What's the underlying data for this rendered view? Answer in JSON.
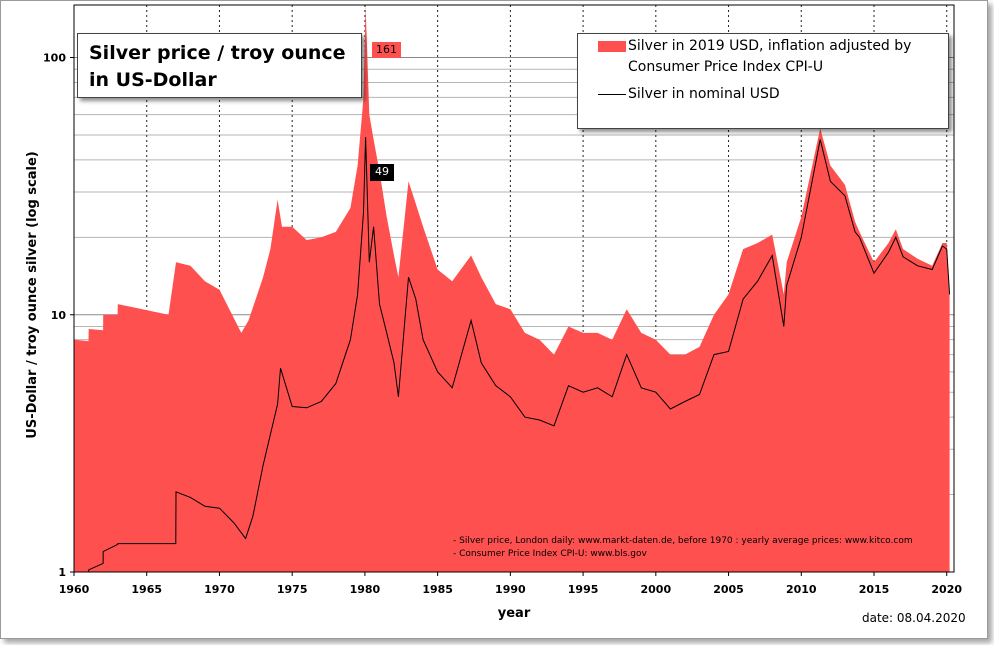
{
  "chart_data": {
    "type": "area",
    "title": "Silver price / troy ounce\nin US-Dollar",
    "xlabel": "year",
    "ylabel": "US-Dollar / troy ounce silver (log scale)",
    "yscale": "log",
    "xlim": [
      1960,
      2020.5
    ],
    "ylim": [
      1,
      160
    ],
    "x_ticks": [
      "1960",
      "1965",
      "1970",
      "1975",
      "1980",
      "1985",
      "1990",
      "1995",
      "2000",
      "2005",
      "2010",
      "2015",
      "2020"
    ],
    "y_tick_labels": [
      "1",
      "10",
      "100"
    ],
    "grid": "horizontal log gridlines, dashed vertical lines every 5 years",
    "legend_position": "top-right",
    "series": [
      {
        "name": "Silver in 2019 USD, inflation adjusted by Consumer Price Index CPI-U",
        "style": "filled area",
        "color": "#ff5050",
        "points": [
          [
            1960,
            8.0
          ],
          [
            1961,
            7.9
          ],
          [
            1961.01,
            8.8
          ],
          [
            1962,
            8.7
          ],
          [
            1962.01,
            10.0
          ],
          [
            1963,
            10.0
          ],
          [
            1963.01,
            11.0
          ],
          [
            1966.5,
            10.0
          ],
          [
            1967.01,
            16.0
          ],
          [
            1968,
            15.5
          ],
          [
            1969,
            13.5
          ],
          [
            1970,
            12.5
          ],
          [
            1971.5,
            8.5
          ],
          [
            1972,
            9.5
          ],
          [
            1973,
            14.0
          ],
          [
            1973.5,
            18.0
          ],
          [
            1974.0,
            28.0
          ],
          [
            1974.3,
            22.0
          ],
          [
            1975,
            22.0
          ],
          [
            1976,
            19.5
          ],
          [
            1977,
            20.0
          ],
          [
            1978,
            21.0
          ],
          [
            1979,
            26.0
          ],
          [
            1979.5,
            38.0
          ],
          [
            1979.9,
            70.0
          ],
          [
            1980.05,
            161.0
          ],
          [
            1980.3,
            60.0
          ],
          [
            1980.6,
            48.0
          ],
          [
            1981,
            36.0
          ],
          [
            1981.5,
            24.0
          ],
          [
            1982,
            17.0
          ],
          [
            1982.3,
            14.0
          ],
          [
            1983.0,
            33.0
          ],
          [
            1983.5,
            27.0
          ],
          [
            1984,
            22.0
          ],
          [
            1985,
            15.0
          ],
          [
            1986,
            13.5
          ],
          [
            1987.3,
            17.0
          ],
          [
            1988,
            14.0
          ],
          [
            1989,
            11.0
          ],
          [
            1990,
            10.5
          ],
          [
            1991,
            8.5
          ],
          [
            1992,
            8.0
          ],
          [
            1993,
            7.0
          ],
          [
            1994,
            9.0
          ],
          [
            1995,
            8.5
          ],
          [
            1996,
            8.5
          ],
          [
            1997,
            8.0
          ],
          [
            1998,
            10.5
          ],
          [
            1999,
            8.5
          ],
          [
            2000,
            8.0
          ],
          [
            2001,
            7.0
          ],
          [
            2002,
            7.0
          ],
          [
            2003,
            7.5
          ],
          [
            2004,
            10.0
          ],
          [
            2005,
            12.0
          ],
          [
            2006,
            18.0
          ],
          [
            2007,
            19.0
          ],
          [
            2008,
            20.5
          ],
          [
            2008.8,
            12.0
          ],
          [
            2009,
            16.0
          ],
          [
            2010,
            24.0
          ],
          [
            2011.3,
            53.0
          ],
          [
            2012,
            38.0
          ],
          [
            2013,
            32.0
          ],
          [
            2013.7,
            23.0
          ],
          [
            2014,
            21.0
          ],
          [
            2015,
            16.0
          ],
          [
            2016,
            19.0
          ],
          [
            2016.5,
            21.5
          ],
          [
            2017,
            18.0
          ],
          [
            2018,
            16.5
          ],
          [
            2019,
            15.5
          ],
          [
            2019.7,
            19.0
          ],
          [
            2020.0,
            19.0
          ],
          [
            2020.2,
            12.0
          ]
        ]
      },
      {
        "name": "Silver in nominal USD",
        "style": "line",
        "color": "#000000",
        "points": [
          [
            1960,
            0.91
          ],
          [
            1961.0,
            0.92
          ],
          [
            1961.01,
            1.02
          ],
          [
            1962,
            1.08
          ],
          [
            1962.01,
            1.2
          ],
          [
            1963,
            1.28
          ],
          [
            1963.01,
            1.29
          ],
          [
            1967,
            1.29
          ],
          [
            1967.01,
            2.05
          ],
          [
            1968,
            1.95
          ],
          [
            1969,
            1.8
          ],
          [
            1970,
            1.77
          ],
          [
            1971,
            1.55
          ],
          [
            1971.8,
            1.35
          ],
          [
            1972.3,
            1.65
          ],
          [
            1973,
            2.6
          ],
          [
            1974.0,
            4.5
          ],
          [
            1974.2,
            6.2
          ],
          [
            1975,
            4.4
          ],
          [
            1976,
            4.35
          ],
          [
            1977,
            4.6
          ],
          [
            1978,
            5.4
          ],
          [
            1979,
            8.0
          ],
          [
            1979.5,
            12.0
          ],
          [
            1979.9,
            25.0
          ],
          [
            1980.05,
            49.0
          ],
          [
            1980.3,
            16.0
          ],
          [
            1980.6,
            22.0
          ],
          [
            1981,
            11.0
          ],
          [
            1981.5,
            8.5
          ],
          [
            1982,
            6.5
          ],
          [
            1982.3,
            4.8
          ],
          [
            1983.0,
            14.0
          ],
          [
            1983.5,
            11.5
          ],
          [
            1984,
            8.0
          ],
          [
            1985,
            6.0
          ],
          [
            1986,
            5.2
          ],
          [
            1987.3,
            9.5
          ],
          [
            1988,
            6.5
          ],
          [
            1989,
            5.3
          ],
          [
            1990,
            4.8
          ],
          [
            1991,
            4.0
          ],
          [
            1992,
            3.9
          ],
          [
            1993,
            3.7
          ],
          [
            1994,
            5.3
          ],
          [
            1995,
            5.0
          ],
          [
            1996,
            5.2
          ],
          [
            1997,
            4.8
          ],
          [
            1998,
            7.0
          ],
          [
            1999,
            5.2
          ],
          [
            2000,
            5.0
          ],
          [
            2001,
            4.3
          ],
          [
            2002,
            4.6
          ],
          [
            2003,
            4.9
          ],
          [
            2004,
            7.0
          ],
          [
            2005,
            7.2
          ],
          [
            2006,
            11.5
          ],
          [
            2007,
            13.5
          ],
          [
            2008,
            17.0
          ],
          [
            2008.8,
            9.0
          ],
          [
            2009,
            13.0
          ],
          [
            2010,
            20.0
          ],
          [
            2011.3,
            48.0
          ],
          [
            2012,
            33.0
          ],
          [
            2013,
            29.0
          ],
          [
            2013.7,
            21.0
          ],
          [
            2014,
            20.0
          ],
          [
            2015,
            14.5
          ],
          [
            2016,
            17.5
          ],
          [
            2016.5,
            20.0
          ],
          [
            2017,
            16.8
          ],
          [
            2018,
            15.5
          ],
          [
            2019,
            15.0
          ],
          [
            2019.7,
            18.5
          ],
          [
            2020.0,
            18.0
          ],
          [
            2020.2,
            12.0
          ]
        ]
      }
    ],
    "annotations": [
      {
        "text": "161",
        "x": 1980.05,
        "y": 161,
        "background": "#ff5050"
      },
      {
        "text": "49",
        "x": 1980.05,
        "y": 49,
        "background": "#000000"
      }
    ],
    "source_notes": [
      "- Silver price, London daily: www.markt-daten.de,  before 1970 :  yearly  average prices: www.kitco.com",
      "- Consumer Price Index CPI-U: www.bls.gov"
    ],
    "date_text": "date:  08.04.2020"
  }
}
